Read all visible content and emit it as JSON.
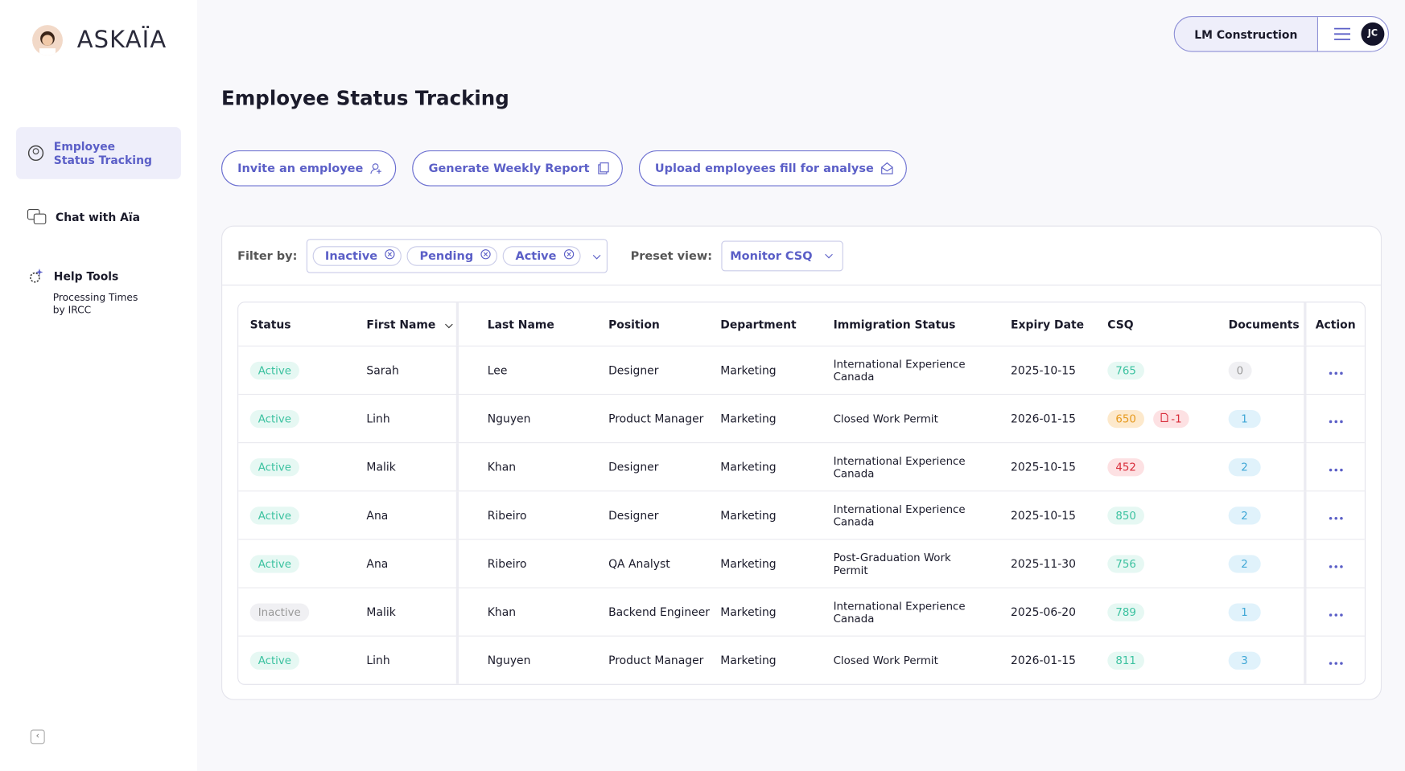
{
  "brand": "ASKAÏA",
  "sidebar": {
    "items": [
      "Employee Status Tracking",
      "Chat with Aïa",
      "Help Tools"
    ],
    "sub_item": "Processing Times by IRCC"
  },
  "header": {
    "company": "LM Construction",
    "initials": "JC"
  },
  "page": {
    "title": "Employee Status Tracking",
    "actions": [
      "Invite an employee",
      "Generate Weekly Report",
      "Upload employees fill for analyse"
    ]
  },
  "filters": {
    "label": "Filter by:",
    "chips": [
      "Inactive",
      "Pending",
      "Active"
    ],
    "preset_label": "Preset view:",
    "preset": "Monitor CSQ"
  },
  "table": {
    "columns": [
      "Status",
      "First Name",
      "Last Name",
      "Position",
      "Department",
      "Immigration Status",
      "Expiry Date",
      "CSQ",
      "Documents",
      "Action"
    ],
    "rows": [
      {
        "status": "Active",
        "status_tone": "green",
        "first": "Sarah",
        "last": "Lee",
        "position": "Designer",
        "department": "Marketing",
        "immigration": "International Experience Canada",
        "expiry": "2025-10-15",
        "csq": 765,
        "csq_tone": "green",
        "documents": 0,
        "documents_tone": "gray"
      },
      {
        "status": "Active",
        "status_tone": "green",
        "first": "Linh",
        "last": "Nguyen",
        "position": "Product Manager",
        "department": "Marketing",
        "immigration": "Closed Work Permit",
        "expiry": "2026-01-15",
        "csq": 650,
        "csq_tone": "orange",
        "csq_flag": "-1",
        "documents": 1,
        "documents_tone": "blue"
      },
      {
        "status": "Active",
        "status_tone": "green",
        "first": "Malik",
        "last": "Khan",
        "position": "Designer",
        "department": "Marketing",
        "immigration": "International Experience Canada",
        "expiry": "2025-10-15",
        "csq": 452,
        "csq_tone": "red",
        "documents": 2,
        "documents_tone": "blue"
      },
      {
        "status": "Active",
        "status_tone": "green",
        "first": "Ana",
        "last": "Ribeiro",
        "position": "Designer",
        "department": "Marketing",
        "immigration": "International Experience Canada",
        "expiry": "2025-10-15",
        "csq": 850,
        "csq_tone": "green",
        "documents": 2,
        "documents_tone": "blue"
      },
      {
        "status": "Active",
        "status_tone": "green",
        "first": "Ana",
        "last": "Ribeiro",
        "position": "QA Analyst",
        "department": "Marketing",
        "immigration": "Post-Graduation Work Permit",
        "expiry": "2025-11-30",
        "csq": 756,
        "csq_tone": "green",
        "documents": 2,
        "documents_tone": "blue"
      },
      {
        "status": "Inactive",
        "status_tone": "gray",
        "first": "Malik",
        "last": "Khan",
        "position": "Backend Engineer",
        "department": "Marketing",
        "immigration": "International Experience Canada",
        "expiry": "2025-06-20",
        "csq": 789,
        "csq_tone": "green",
        "documents": 1,
        "documents_tone": "blue"
      },
      {
        "status": "Active",
        "status_tone": "green",
        "first": "Linh",
        "last": "Nguyen",
        "position": "Product Manager",
        "department": "Marketing",
        "immigration": "Closed Work Permit",
        "expiry": "2026-01-15",
        "csq": 811,
        "csq_tone": "green",
        "documents": 3,
        "documents_tone": "blue"
      }
    ]
  }
}
